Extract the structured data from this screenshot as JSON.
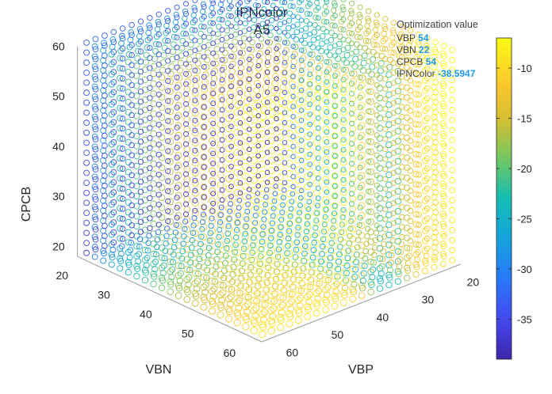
{
  "chart_data": {
    "type": "scatter",
    "subtype": "scatter3",
    "title": "IPNcolor",
    "subtitle": "A5",
    "xlabel": "VBP",
    "ylabel": "VBN",
    "zlabel": "CPCB",
    "x_ticks": [
      "20",
      "30",
      "40",
      "50",
      "60"
    ],
    "y_ticks": [
      "20",
      "30",
      "40",
      "50",
      "60"
    ],
    "z_ticks": [
      "20",
      "30",
      "40",
      "50",
      "60"
    ],
    "xlim": [
      18,
      62
    ],
    "ylim": [
      18,
      62
    ],
    "zlim": [
      18,
      60
    ],
    "grid_range": {
      "from": 18,
      "to": 60
    },
    "marker": "o (open circles)",
    "colormap": "parula",
    "colorbar": {
      "range": [
        -39,
        -7
      ],
      "ticks": [
        "-10",
        "-15",
        "-20",
        "-25",
        "-30",
        "-35"
      ]
    },
    "datatip": {
      "header": "Optimization value",
      "rows": [
        {
          "label": "VBP",
          "value": "54"
        },
        {
          "label": "VBN",
          "value": "22"
        },
        {
          "label": "CPCB",
          "value": "54"
        },
        {
          "label": "IPNColor",
          "value": "-38.5947"
        }
      ]
    }
  }
}
